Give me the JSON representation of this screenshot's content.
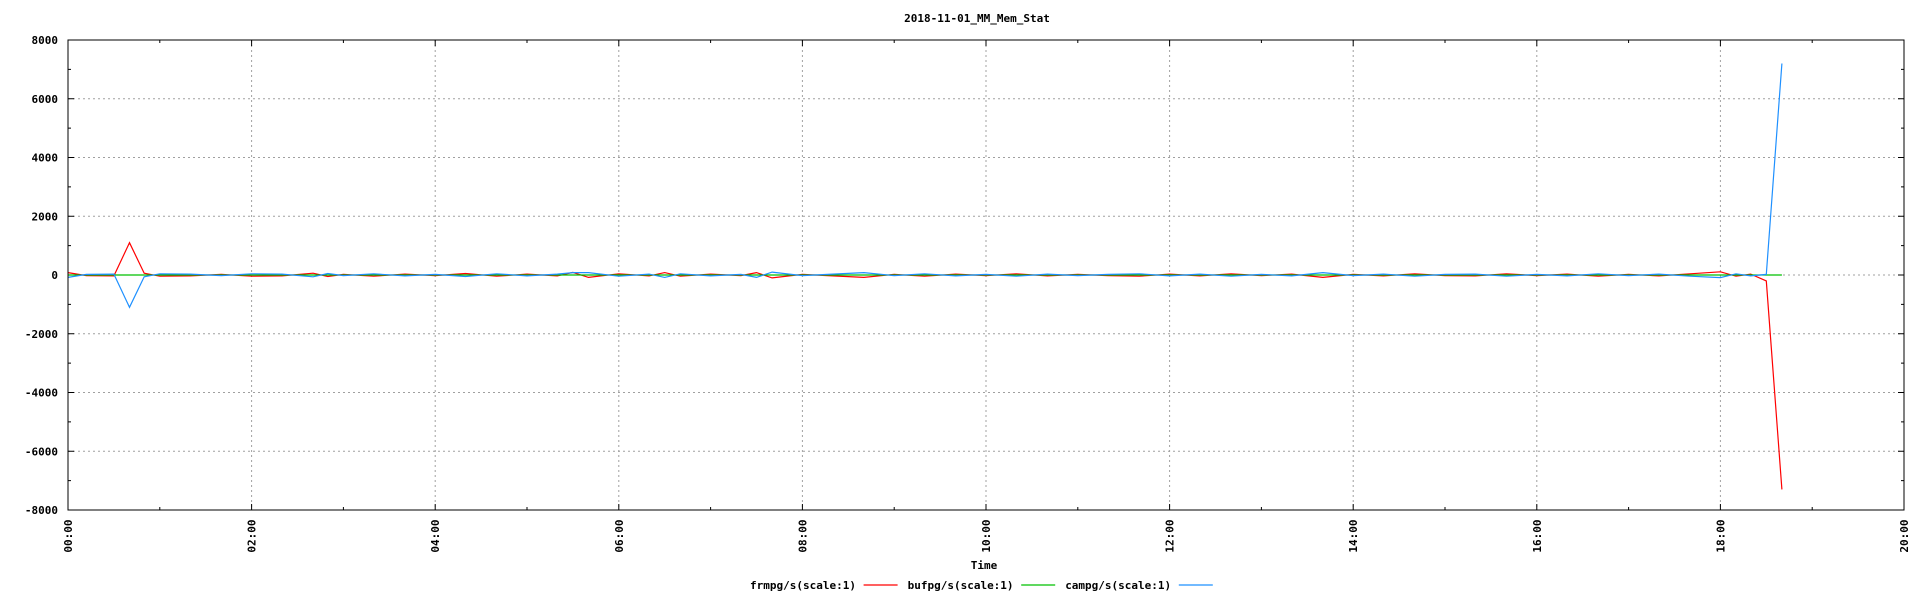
{
  "chart_data": {
    "type": "line",
    "title": "2018-11-01_MM_Mem_Stat",
    "xlabel": "Time",
    "ylabel": "",
    "xlim_hours": [
      0,
      20
    ],
    "ylim": [
      -8000,
      8000
    ],
    "grid": true,
    "legend_position": "bottom-center",
    "x_ticks": [
      "00:00",
      "02:00",
      "04:00",
      "06:00",
      "08:00",
      "10:00",
      "12:00",
      "14:00",
      "16:00",
      "18:00",
      "20:00"
    ],
    "y_ticks": [
      "8000",
      "6000",
      "4000",
      "2000",
      "0",
      "-2000",
      "-4000",
      "-6000",
      "-8000"
    ],
    "x_hours": [
      0.0,
      0.2,
      0.5,
      0.67,
      0.83,
      1.0,
      1.33,
      1.67,
      2.0,
      2.33,
      2.67,
      2.83,
      3.0,
      3.33,
      3.67,
      4.0,
      4.33,
      4.67,
      5.0,
      5.33,
      5.5,
      5.67,
      6.0,
      6.33,
      6.5,
      6.67,
      7.0,
      7.33,
      7.5,
      7.67,
      8.0,
      8.33,
      8.67,
      9.0,
      9.33,
      9.67,
      10.0,
      10.33,
      10.67,
      11.0,
      11.33,
      11.67,
      12.0,
      12.33,
      12.67,
      13.0,
      13.33,
      13.67,
      14.0,
      14.33,
      14.67,
      15.0,
      15.33,
      15.67,
      16.0,
      16.33,
      16.67,
      17.0,
      17.33,
      17.67,
      18.0,
      18.17,
      18.33,
      18.5,
      18.67
    ],
    "series": [
      {
        "name": "frmpg/s(scale:1)",
        "color": "#ff0000",
        "values": [
          80,
          -20,
          -30,
          1100,
          60,
          -40,
          -30,
          20,
          -40,
          -30,
          60,
          -50,
          20,
          -40,
          30,
          -20,
          50,
          -40,
          30,
          -30,
          90,
          -80,
          40,
          -30,
          80,
          -40,
          30,
          -20,
          80,
          -100,
          20,
          -30,
          -80,
          20,
          -40,
          30,
          -20,
          40,
          -30,
          20,
          -20,
          -40,
          30,
          -30,
          40,
          -20,
          30,
          -80,
          20,
          -30,
          40,
          -20,
          -30,
          40,
          -20,
          30,
          -40,
          20,
          -30,
          40,
          110,
          -40,
          30,
          -200,
          -7300
        ]
      },
      {
        "name": "bufpg/s(scale:1)",
        "color": "#00c000",
        "values": [
          0,
          0,
          0,
          0,
          0,
          0,
          0,
          0,
          0,
          0,
          0,
          0,
          0,
          0,
          0,
          0,
          0,
          0,
          0,
          0,
          0,
          0,
          0,
          0,
          0,
          0,
          0,
          0,
          0,
          0,
          0,
          0,
          0,
          0,
          0,
          0,
          0,
          0,
          0,
          0,
          0,
          0,
          0,
          0,
          0,
          0,
          0,
          0,
          0,
          0,
          0,
          0,
          0,
          0,
          0,
          0,
          0,
          0,
          0,
          0,
          0,
          0,
          0,
          0,
          0
        ]
      },
      {
        "name": "campg/s(scale:1)",
        "color": "#1e90ff",
        "values": [
          -80,
          20,
          30,
          -1100,
          -60,
          40,
          30,
          -20,
          40,
          30,
          -60,
          50,
          -20,
          40,
          -30,
          20,
          -50,
          40,
          -30,
          30,
          80,
          80,
          -40,
          30,
          -80,
          40,
          -30,
          20,
          -80,
          100,
          -20,
          30,
          80,
          -20,
          40,
          -30,
          20,
          -40,
          30,
          -20,
          20,
          40,
          -30,
          30,
          -40,
          20,
          -30,
          80,
          -20,
          30,
          -40,
          20,
          30,
          -40,
          20,
          -30,
          40,
          -20,
          30,
          -40,
          -90,
          40,
          -30,
          20,
          7200
        ]
      }
    ]
  }
}
